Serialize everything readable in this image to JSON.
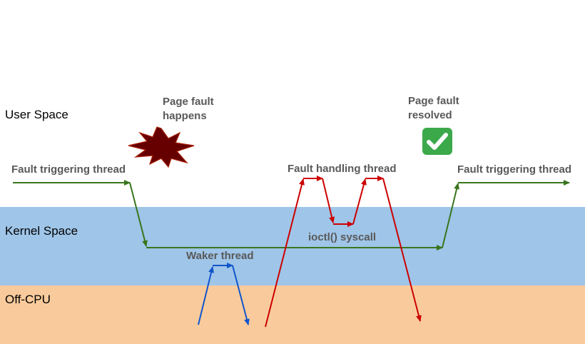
{
  "zones": {
    "user": "User Space",
    "kernel": "Kernel Space",
    "offcpu": "Off-CPU"
  },
  "threads": {
    "fault_triggering_left": "Fault triggering thread",
    "fault_handling": "Fault handling thread",
    "fault_triggering_right": "Fault triggering thread",
    "waker": "Waker thread"
  },
  "annotations": {
    "page_fault_happens": "Page fault happens",
    "page_fault_resolved": "Page fault resolved",
    "ioctl": "ioctl() syscall"
  },
  "icons": {
    "explosion": "explosion-icon",
    "check": "check-mark-icon"
  },
  "colors": {
    "green": "#38761d",
    "red": "#cc0000",
    "blue": "#1155cc",
    "explosion": "#660000",
    "check": "#3ba94a",
    "kernel_band": "#9fc5e8",
    "offcpu_band": "#f9cb9c"
  }
}
